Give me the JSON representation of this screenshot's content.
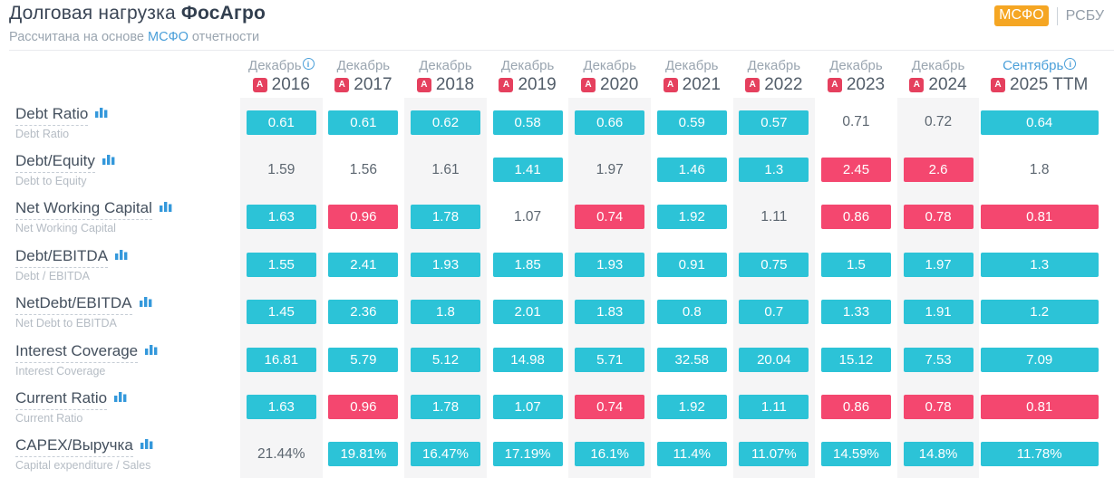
{
  "header": {
    "title_regular": "Долговая нагрузка",
    "title_bold": "ФосАгро",
    "subtitle_prefix": "Рассчитана на основе",
    "subtitle_link": "МСФО",
    "subtitle_suffix": "отчетности",
    "toggle": {
      "active_label": "МСФО",
      "inactive_label": "РСБУ"
    }
  },
  "icons": {
    "info": "i",
    "pdf": "A",
    "bar_chart": "bar-chart"
  },
  "colors": {
    "accent_good": "#2cc3d7",
    "accent_bad": "#f4476f",
    "brand_orange": "#f5a623",
    "link_blue": "#4a9fd9",
    "pdf_red": "#e5405e",
    "icon_blue": "#3498db",
    "stripe_gray": "#f5f5f6"
  },
  "table": {
    "columns": [
      {
        "month": "Декабрь",
        "year": "2016",
        "info": true,
        "accent": false
      },
      {
        "month": "Декабрь",
        "year": "2017",
        "info": false,
        "accent": false
      },
      {
        "month": "Декабрь",
        "year": "2018",
        "info": false,
        "accent": false
      },
      {
        "month": "Декабрь",
        "year": "2019",
        "info": false,
        "accent": false
      },
      {
        "month": "Декабрь",
        "year": "2020",
        "info": false,
        "accent": false
      },
      {
        "month": "Декабрь",
        "year": "2021",
        "info": false,
        "accent": false
      },
      {
        "month": "Декабрь",
        "year": "2022",
        "info": false,
        "accent": false
      },
      {
        "month": "Декабрь",
        "year": "2023",
        "info": false,
        "accent": false
      },
      {
        "month": "Декабрь",
        "year": "2024",
        "info": false,
        "accent": false
      },
      {
        "month": "Сентябрь",
        "year": "2025 TTM",
        "info": true,
        "accent": true
      }
    ],
    "rows": [
      {
        "label": "Debt Ratio",
        "sublabel": "Debt Ratio",
        "values": [
          "0.61",
          "0.61",
          "0.62",
          "0.58",
          "0.66",
          "0.59",
          "0.57",
          "0.71",
          "0.72",
          "0.64"
        ],
        "styles": [
          "good",
          "good",
          "good",
          "good",
          "good",
          "good",
          "good",
          "none",
          "none",
          "good"
        ]
      },
      {
        "label": "Debt/Equity",
        "sublabel": "Debt to Equity",
        "values": [
          "1.59",
          "1.56",
          "1.61",
          "1.41",
          "1.97",
          "1.46",
          "1.3",
          "2.45",
          "2.6",
          "1.8"
        ],
        "styles": [
          "none",
          "none",
          "none",
          "good",
          "none",
          "good",
          "good",
          "bad",
          "bad",
          "none"
        ]
      },
      {
        "label": "Net Working Capital",
        "sublabel": "Net Working Capital",
        "values": [
          "1.63",
          "0.96",
          "1.78",
          "1.07",
          "0.74",
          "1.92",
          "1.11",
          "0.86",
          "0.78",
          "0.81"
        ],
        "styles": [
          "good",
          "bad",
          "good",
          "none",
          "bad",
          "good",
          "none",
          "bad",
          "bad",
          "bad"
        ]
      },
      {
        "label": "Debt/EBITDA",
        "sublabel": "Debt / EBITDA",
        "values": [
          "1.55",
          "2.41",
          "1.93",
          "1.85",
          "1.93",
          "0.91",
          "0.75",
          "1.5",
          "1.97",
          "1.3"
        ],
        "styles": [
          "good",
          "good",
          "good",
          "good",
          "good",
          "good",
          "good",
          "good",
          "good",
          "good"
        ]
      },
      {
        "label": "NetDebt/EBITDA",
        "sublabel": "Net Debt to EBITDA",
        "values": [
          "1.45",
          "2.36",
          "1.8",
          "2.01",
          "1.83",
          "0.8",
          "0.7",
          "1.33",
          "1.91",
          "1.2"
        ],
        "styles": [
          "good",
          "good",
          "good",
          "good",
          "good",
          "good",
          "good",
          "good",
          "good",
          "good"
        ]
      },
      {
        "label": "Interest Coverage",
        "sublabel": "Interest Coverage",
        "values": [
          "16.81",
          "5.79",
          "5.12",
          "14.98",
          "5.71",
          "32.58",
          "20.04",
          "15.12",
          "7.53",
          "7.09"
        ],
        "styles": [
          "good",
          "good",
          "good",
          "good",
          "good",
          "good",
          "good",
          "good",
          "good",
          "good"
        ]
      },
      {
        "label": "Current Ratio",
        "sublabel": "Current Ratio",
        "values": [
          "1.63",
          "0.96",
          "1.78",
          "1.07",
          "0.74",
          "1.92",
          "1.11",
          "0.86",
          "0.78",
          "0.81"
        ],
        "styles": [
          "good",
          "bad",
          "good",
          "good",
          "bad",
          "good",
          "good",
          "bad",
          "bad",
          "bad"
        ]
      },
      {
        "label": "CAPEX/Выручка",
        "sublabel": "Capital expenditure / Sales",
        "values": [
          "21.44%",
          "19.81%",
          "16.47%",
          "17.19%",
          "16.1%",
          "11.4%",
          "11.07%",
          "14.59%",
          "14.8%",
          "11.78%"
        ],
        "styles": [
          "none",
          "good",
          "good",
          "good",
          "good",
          "good",
          "good",
          "good",
          "good",
          "good"
        ]
      }
    ]
  }
}
